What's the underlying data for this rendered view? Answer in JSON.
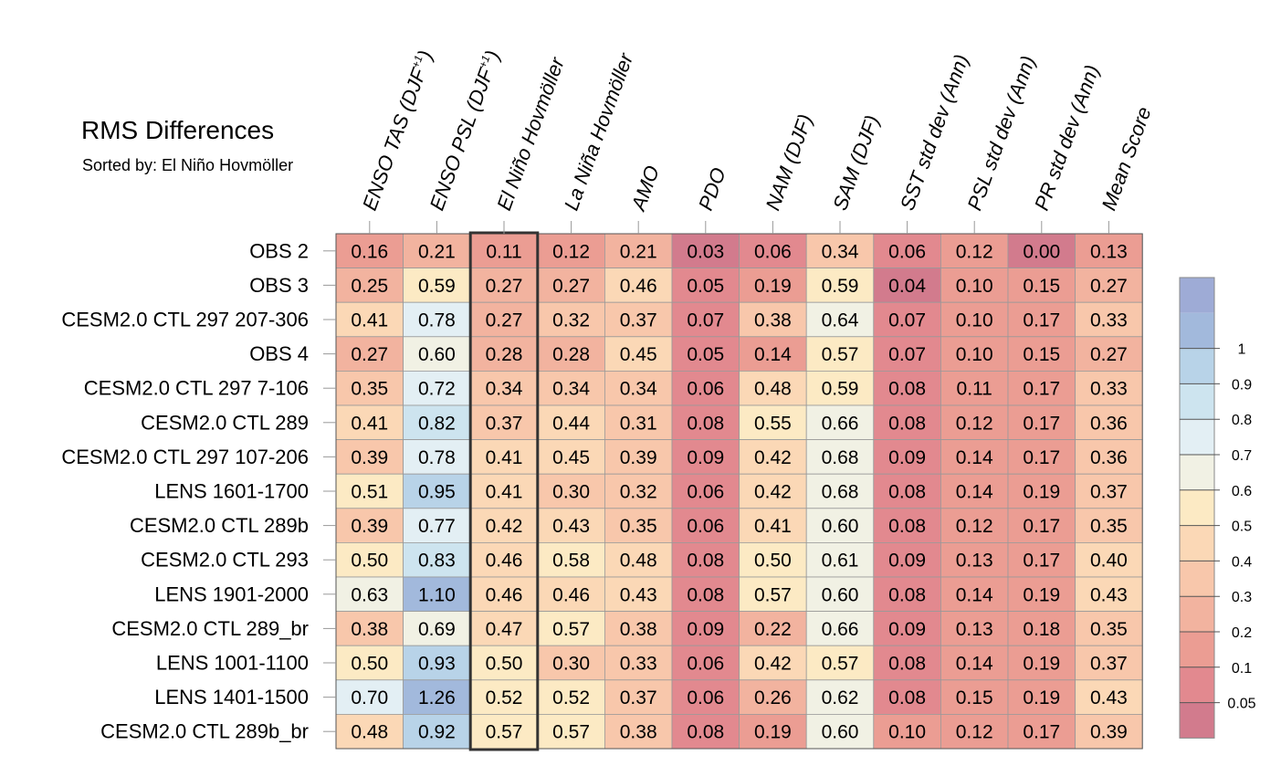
{
  "title": "RMS Differences",
  "subtitle": "Sorted by: El Niño Hovmöller",
  "chart_data": {
    "type": "heatmap",
    "title": "RMS Differences",
    "subtitle": "Sorted by: El Niño Hovmöller",
    "columns": [
      {
        "name": "ENSO TAS (DJF",
        "sup": "+1",
        "suffix": ")"
      },
      {
        "name": "ENSO PSL (DJF",
        "sup": "+1",
        "suffix": ")"
      },
      {
        "name": "El Niño Hovmöller"
      },
      {
        "name": "La Niña Hovmöller"
      },
      {
        "name": "AMO"
      },
      {
        "name": "PDO"
      },
      {
        "name": "NAM (DJF)"
      },
      {
        "name": "SAM (DJF)"
      },
      {
        "name": "SST std dev (Ann)"
      },
      {
        "name": "PSL std dev (Ann)"
      },
      {
        "name": "PR std dev (Ann)"
      },
      {
        "name": "Mean Score"
      }
    ],
    "rows": [
      "OBS 2",
      "OBS 3",
      "CESM2.0 CTL 297 207-306",
      "OBS 4",
      "CESM2.0 CTL 297 7-106",
      "CESM2.0 CTL 289",
      "CESM2.0 CTL 297 107-206",
      "LENS 1601-1700",
      "CESM2.0 CTL 289b",
      "CESM2.0 CTL 293",
      "LENS 1901-2000",
      "CESM2.0 CTL 289_br",
      "LENS 1001-1100",
      "LENS 1401-1500",
      "CESM2.0 CTL 289b_br"
    ],
    "values": [
      [
        "0.16",
        "0.21",
        "0.11",
        "0.12",
        "0.21",
        "0.03",
        "0.06",
        "0.34",
        "0.06",
        "0.12",
        "0.00",
        "0.13"
      ],
      [
        "0.25",
        "0.59",
        "0.27",
        "0.27",
        "0.46",
        "0.05",
        "0.19",
        "0.59",
        "0.04",
        "0.10",
        "0.15",
        "0.27"
      ],
      [
        "0.41",
        "0.78",
        "0.27",
        "0.32",
        "0.37",
        "0.07",
        "0.38",
        "0.64",
        "0.07",
        "0.10",
        "0.17",
        "0.33"
      ],
      [
        "0.27",
        "0.60",
        "0.28",
        "0.28",
        "0.45",
        "0.05",
        "0.14",
        "0.57",
        "0.07",
        "0.10",
        "0.15",
        "0.27"
      ],
      [
        "0.35",
        "0.72",
        "0.34",
        "0.34",
        "0.34",
        "0.06",
        "0.48",
        "0.59",
        "0.08",
        "0.11",
        "0.17",
        "0.33"
      ],
      [
        "0.41",
        "0.82",
        "0.37",
        "0.44",
        "0.31",
        "0.08",
        "0.55",
        "0.66",
        "0.08",
        "0.12",
        "0.17",
        "0.36"
      ],
      [
        "0.39",
        "0.78",
        "0.41",
        "0.45",
        "0.39",
        "0.09",
        "0.42",
        "0.68",
        "0.09",
        "0.14",
        "0.17",
        "0.36"
      ],
      [
        "0.51",
        "0.95",
        "0.41",
        "0.30",
        "0.32",
        "0.06",
        "0.42",
        "0.68",
        "0.08",
        "0.14",
        "0.19",
        "0.37"
      ],
      [
        "0.39",
        "0.77",
        "0.42",
        "0.43",
        "0.35",
        "0.06",
        "0.41",
        "0.60",
        "0.08",
        "0.12",
        "0.17",
        "0.35"
      ],
      [
        "0.50",
        "0.83",
        "0.46",
        "0.58",
        "0.48",
        "0.08",
        "0.50",
        "0.61",
        "0.09",
        "0.13",
        "0.17",
        "0.40"
      ],
      [
        "0.63",
        "1.10",
        "0.46",
        "0.46",
        "0.43",
        "0.08",
        "0.57",
        "0.60",
        "0.08",
        "0.14",
        "0.19",
        "0.43"
      ],
      [
        "0.38",
        "0.69",
        "0.47",
        "0.57",
        "0.38",
        "0.09",
        "0.22",
        "0.66",
        "0.09",
        "0.13",
        "0.18",
        "0.35"
      ],
      [
        "0.50",
        "0.93",
        "0.50",
        "0.30",
        "0.33",
        "0.06",
        "0.42",
        "0.57",
        "0.08",
        "0.14",
        "0.19",
        "0.37"
      ],
      [
        "0.70",
        "1.26",
        "0.52",
        "0.52",
        "0.37",
        "0.06",
        "0.26",
        "0.62",
        "0.08",
        "0.15",
        "0.19",
        "0.43"
      ],
      [
        "0.48",
        "0.92",
        "0.57",
        "0.57",
        "0.38",
        "0.08",
        "0.19",
        "0.60",
        "0.10",
        "0.12",
        "0.17",
        "0.39"
      ]
    ],
    "highlighted_column": "El Niño Hovmöller",
    "colorbar": {
      "levels": [
        "0.05",
        "0.1",
        "0.2",
        "0.3",
        "0.4",
        "0.5",
        "0.6",
        "0.7",
        "0.8",
        "0.9",
        "1"
      ],
      "colors": [
        "#d27b8d",
        "#e2898f",
        "#eb9d93",
        "#f2b39f",
        "#f8c7ab",
        "#fbd8b6",
        "#fceac4",
        "#f1f1e4",
        "#e3eff4",
        "#cde4ef",
        "#b8d3e8",
        "#a2b9dc",
        "#9eabd6"
      ]
    }
  }
}
